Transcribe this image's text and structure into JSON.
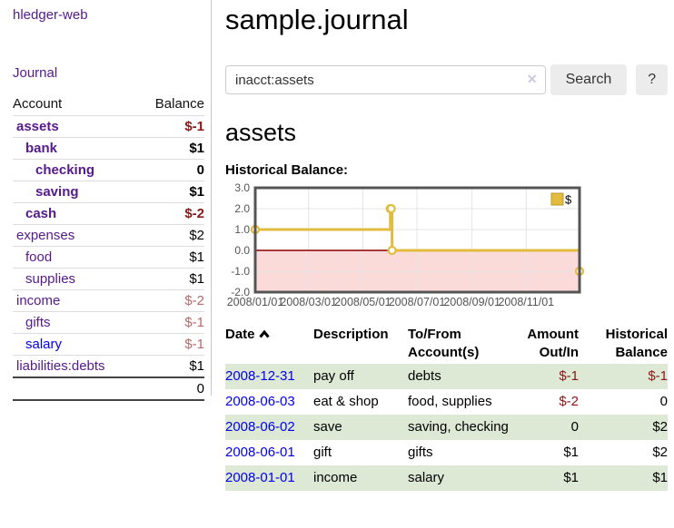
{
  "colors": {
    "link_purple": "#551a8b",
    "link_blue": "#0000ee",
    "negative_strong": "#8b1717",
    "negative_soft": "#b26b6b",
    "row_green": "#dde8d5",
    "button_gray": "#ececec"
  },
  "sidebar": {
    "brand": "hledger-web",
    "nav": [
      {
        "label": "Journal"
      }
    ],
    "accounts_table": {
      "headers": [
        "Account",
        "Balance"
      ],
      "rows": [
        {
          "account": "assets",
          "indent": 1,
          "bold": true,
          "link": "purple",
          "balance": "$-1",
          "balance_style": "neg-strong"
        },
        {
          "account": "bank",
          "indent": 2,
          "bold": true,
          "link": "purple",
          "balance": "$1",
          "balance_style": "pos"
        },
        {
          "account": "checking",
          "indent": 3,
          "bold": true,
          "link": "purple",
          "balance": "0",
          "balance_style": "pos"
        },
        {
          "account": "saving",
          "indent": 3,
          "bold": true,
          "link": "purple",
          "balance": "$1",
          "balance_style": "pos"
        },
        {
          "account": "cash",
          "indent": 2,
          "bold": true,
          "link": "purple",
          "balance": "$-2",
          "balance_style": "neg-strong"
        },
        {
          "account": "expenses",
          "indent": 1,
          "bold": false,
          "link": "purple",
          "balance": "$2",
          "balance_style": "pos"
        },
        {
          "account": "food",
          "indent": 2,
          "bold": false,
          "link": "purple",
          "balance": "$1",
          "balance_style": "pos"
        },
        {
          "account": "supplies",
          "indent": 2,
          "bold": false,
          "link": "purple",
          "balance": "$1",
          "balance_style": "pos"
        },
        {
          "account": "income",
          "indent": 1,
          "bold": false,
          "link": "purple",
          "balance": "$-2",
          "balance_style": "neg-soft"
        },
        {
          "account": "gifts",
          "indent": 2,
          "bold": false,
          "link": "purple",
          "balance": "$-1",
          "balance_style": "neg-soft"
        },
        {
          "account": "salary",
          "indent": 2,
          "bold": false,
          "link": "blue",
          "balance": "$-1",
          "balance_style": "neg-soft"
        },
        {
          "account": "liabilities:debts",
          "indent": 1,
          "bold": false,
          "link": "purple",
          "balance": "$1",
          "balance_style": "pos"
        }
      ],
      "total": "0"
    }
  },
  "main": {
    "title": "sample.journal",
    "search": {
      "value": "inacct:assets",
      "placeholder": "",
      "clear_icon": "✕",
      "button": "Search",
      "help_button": "?"
    },
    "account_heading": "assets",
    "chart_label": "Historical Balance:",
    "register": {
      "headers": [
        "Date",
        "Description",
        "To/From Account(s)",
        "Amount Out/In",
        "Historical Balance"
      ],
      "sort_icon": "chevron-up",
      "rows": [
        {
          "date": "2008-12-31",
          "description": "pay off",
          "accounts": "debts",
          "amount": "$-1",
          "amount_neg": true,
          "balance": "$-1",
          "balance_neg": true
        },
        {
          "date": "2008-06-03",
          "description": "eat & shop",
          "accounts": "food, supplies",
          "amount": "$-2",
          "amount_neg": true,
          "balance": "0",
          "balance_neg": false
        },
        {
          "date": "2008-06-02",
          "description": "save",
          "accounts": "saving, checking",
          "amount": "0",
          "amount_neg": false,
          "balance": "$2",
          "balance_neg": false
        },
        {
          "date": "2008-06-01",
          "description": "gift",
          "accounts": "gifts",
          "amount": "$1",
          "amount_neg": false,
          "balance": "$2",
          "balance_neg": false
        },
        {
          "date": "2008-01-01",
          "description": "income",
          "accounts": "salary",
          "amount": "$1",
          "amount_neg": false,
          "balance": "$1",
          "balance_neg": false
        }
      ]
    }
  },
  "chart_data": {
    "type": "line",
    "title": "Historical Balance:",
    "step": true,
    "series": [
      {
        "name": "$",
        "color": "#e3bc3f",
        "points": [
          [
            "2008-01-01",
            1
          ],
          [
            "2008-06-01",
            2
          ],
          [
            "2008-06-02",
            2
          ],
          [
            "2008-06-03",
            0
          ],
          [
            "2008-12-31",
            -1
          ]
        ]
      }
    ],
    "xrange": [
      "2008-01-01",
      "2008-12-31"
    ],
    "ylim": [
      -2.0,
      3.0
    ],
    "yticks": [
      3.0,
      2.0,
      1.0,
      0.0,
      -1.0,
      -2.0
    ],
    "xticks": [
      "2008/01/01",
      "2008/03/01",
      "2008/05/01",
      "2008/07/01",
      "2008/09/01",
      "2008/11/01"
    ],
    "grid": true,
    "legend_position": "top-right",
    "negative_region_color": "#fbdada",
    "zero_line_color": "#8b0000",
    "grid_color": "#e4e4e4",
    "border_color": "#545454",
    "tick_label_color": "#545454"
  }
}
